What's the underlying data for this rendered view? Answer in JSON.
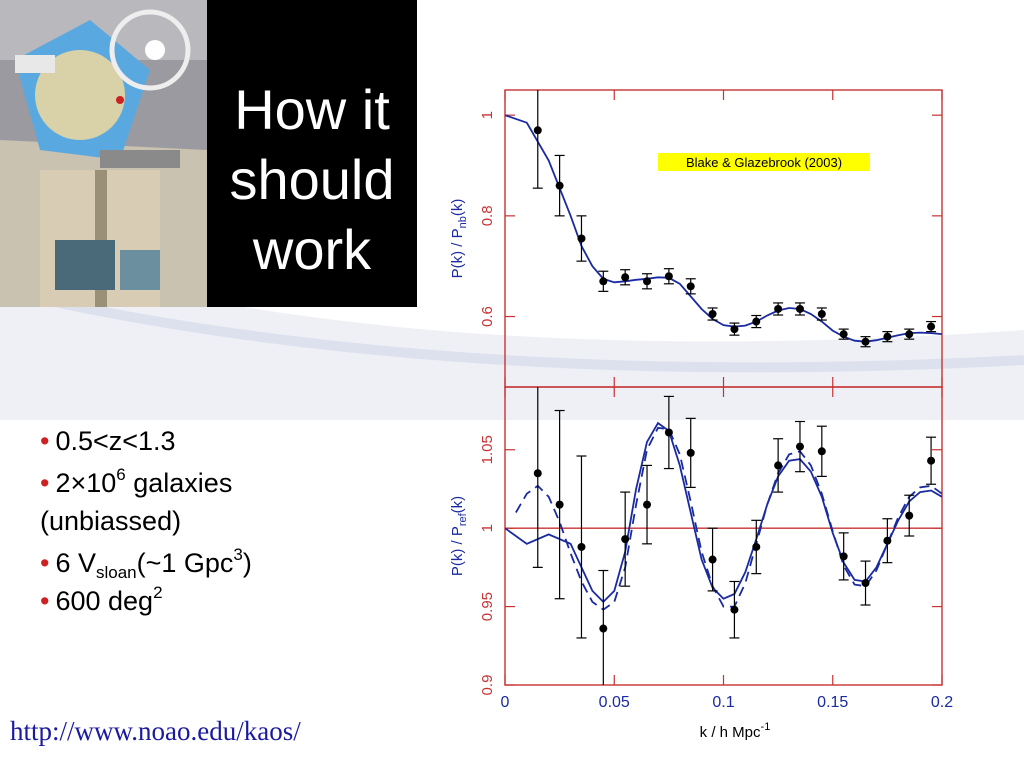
{
  "slide": {
    "title_lines": [
      "How it",
      "should",
      "work"
    ],
    "bullets": [
      {
        "pre": "0.5<z<1.3"
      },
      {
        "pre": "2×10",
        "sup": "6",
        "post": " galaxies",
        "line2": "(unbiassed)"
      },
      {
        "pre": "6 V",
        "sub": "sloan",
        "mid": "(~1 Gpc",
        "sup": "3",
        "post": ")"
      },
      {
        "pre": "600 deg",
        "sup": "2"
      }
    ],
    "url": "http://www.noao.edu/kaos/"
  },
  "colors": {
    "frame": "#c83232",
    "curve": "#1a2aa0",
    "points": "#000000",
    "annotation_bg": "#ffff00",
    "url": "#1a1aa0",
    "bullet_dot": "#cc2222"
  },
  "chart_data": [
    {
      "type": "line",
      "ylabel": "P(k) / P_nb(k)",
      "ylabel_parts": {
        "pre": "P(k)  /  P",
        "sub": "nb",
        "post": "(k)"
      },
      "ylim": [
        0.46,
        1.05
      ],
      "xlim": [
        0,
        0.2
      ],
      "yticks": [
        0.6,
        0.8,
        1
      ],
      "annotation": "Blake & Glazebrook (2003)",
      "points": {
        "x": [
          0.015,
          0.025,
          0.035,
          0.045,
          0.055,
          0.065,
          0.075,
          0.085,
          0.095,
          0.105,
          0.115,
          0.125,
          0.135,
          0.145,
          0.155,
          0.165,
          0.175,
          0.185,
          0.195
        ],
        "y": [
          0.97,
          0.86,
          0.755,
          0.67,
          0.678,
          0.67,
          0.68,
          0.66,
          0.605,
          0.575,
          0.59,
          0.615,
          0.615,
          0.605,
          0.565,
          0.55,
          0.56,
          0.565,
          0.58
        ],
        "err": [
          0.115,
          0.06,
          0.045,
          0.02,
          0.015,
          0.015,
          0.015,
          0.015,
          0.012,
          0.012,
          0.012,
          0.012,
          0.012,
          0.012,
          0.01,
          0.01,
          0.01,
          0.01,
          0.01
        ]
      },
      "series": [
        {
          "x": [
            0,
            0.01,
            0.02,
            0.03,
            0.035,
            0.04,
            0.045,
            0.05,
            0.055,
            0.06,
            0.065,
            0.07,
            0.075,
            0.08,
            0.085,
            0.09,
            0.095,
            0.1,
            0.105,
            0.11,
            0.115,
            0.12,
            0.125,
            0.13,
            0.135,
            0.14,
            0.145,
            0.15,
            0.155,
            0.16,
            0.165,
            0.17,
            0.175,
            0.18,
            0.185,
            0.19,
            0.195,
            0.2
          ],
          "y": [
            1.0,
            0.985,
            0.91,
            0.8,
            0.74,
            0.7,
            0.675,
            0.668,
            0.67,
            0.673,
            0.675,
            0.678,
            0.677,
            0.665,
            0.64,
            0.615,
            0.595,
            0.583,
            0.58,
            0.582,
            0.59,
            0.602,
            0.612,
            0.617,
            0.615,
            0.605,
            0.59,
            0.572,
            0.56,
            0.552,
            0.55,
            0.553,
            0.558,
            0.563,
            0.567,
            0.568,
            0.567,
            0.565
          ]
        }
      ]
    },
    {
      "type": "line",
      "xlabel": "k / h Mpc",
      "xlabel_sup": "-1",
      "ylabel": "P(k) / P_ref(k)",
      "ylabel_parts": {
        "pre": "P(k)  /  P",
        "sub": "ref",
        "post": "(k)"
      },
      "ylim": [
        0.9,
        1.09
      ],
      "xlim": [
        0,
        0.2
      ],
      "yticks": [
        0.9,
        0.95,
        1,
        1.05
      ],
      "xticks": [
        0,
        0.05,
        0.1,
        0.15,
        0.2
      ],
      "reference_line": 1,
      "points": {
        "x": [
          0.015,
          0.025,
          0.035,
          0.045,
          0.055,
          0.065,
          0.075,
          0.085,
          0.095,
          0.105,
          0.115,
          0.125,
          0.135,
          0.145,
          0.155,
          0.165,
          0.175,
          0.185,
          0.195
        ],
        "y": [
          1.035,
          1.015,
          0.988,
          0.936,
          0.993,
          1.015,
          1.061,
          1.048,
          0.98,
          0.948,
          0.988,
          1.04,
          1.052,
          1.049,
          0.982,
          0.965,
          0.992,
          1.008,
          1.043
        ],
        "err": [
          0.06,
          0.06,
          0.058,
          0.037,
          0.03,
          0.025,
          0.023,
          0.022,
          0.02,
          0.018,
          0.017,
          0.017,
          0.016,
          0.016,
          0.015,
          0.014,
          0.014,
          0.013,
          0.015
        ]
      },
      "series": [
        {
          "style": "solid",
          "x": [
            0,
            0.01,
            0.02,
            0.03,
            0.035,
            0.04,
            0.045,
            0.05,
            0.055,
            0.06,
            0.065,
            0.07,
            0.075,
            0.08,
            0.085,
            0.09,
            0.095,
            0.1,
            0.105,
            0.11,
            0.115,
            0.12,
            0.125,
            0.13,
            0.135,
            0.14,
            0.145,
            0.15,
            0.155,
            0.16,
            0.165,
            0.17,
            0.175,
            0.18,
            0.185,
            0.19,
            0.195,
            0.2
          ],
          "y": [
            1.0,
            0.99,
            0.996,
            0.99,
            0.975,
            0.96,
            0.953,
            0.96,
            0.985,
            1.025,
            1.055,
            1.067,
            1.062,
            1.04,
            1.01,
            0.98,
            0.962,
            0.955,
            0.958,
            0.972,
            0.993,
            1.015,
            1.033,
            1.043,
            1.044,
            1.036,
            1.02,
            0.997,
            0.978,
            0.967,
            0.966,
            0.975,
            0.99,
            1.005,
            1.017,
            1.023,
            1.024,
            1.02
          ]
        },
        {
          "style": "dashed",
          "x": [
            0.005,
            0.01,
            0.015,
            0.02,
            0.025,
            0.03,
            0.035,
            0.04,
            0.045,
            0.05,
            0.055,
            0.06,
            0.065,
            0.07,
            0.075,
            0.08,
            0.085,
            0.09,
            0.095,
            0.1,
            0.105,
            0.11,
            0.115,
            0.12,
            0.125,
            0.13,
            0.135,
            0.14,
            0.145,
            0.15,
            0.155,
            0.16,
            0.165,
            0.17,
            0.175,
            0.18,
            0.185,
            0.19,
            0.195,
            0.2
          ],
          "y": [
            1.01,
            1.022,
            1.027,
            1.02,
            1.004,
            0.984,
            0.966,
            0.953,
            0.948,
            0.953,
            0.975,
            1.015,
            1.05,
            1.064,
            1.063,
            1.047,
            1.017,
            0.985,
            0.963,
            0.95,
            0.95,
            0.965,
            0.99,
            1.015,
            1.035,
            1.047,
            1.049,
            1.04,
            1.022,
            0.998,
            0.976,
            0.964,
            0.963,
            0.973,
            0.99,
            1.007,
            1.02,
            1.026,
            1.027,
            1.022
          ]
        }
      ]
    }
  ]
}
